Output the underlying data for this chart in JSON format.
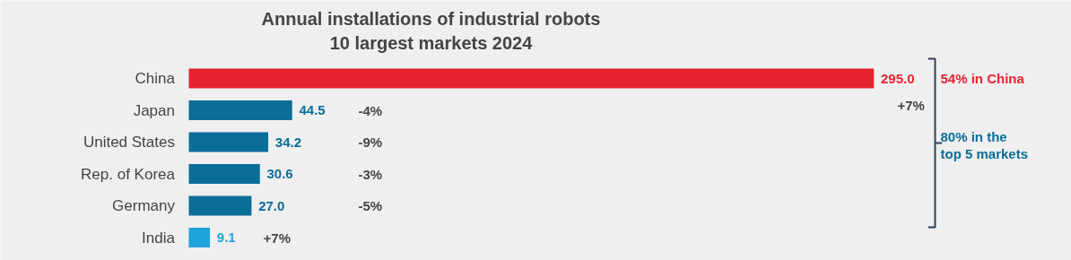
{
  "chart_data": {
    "type": "bar",
    "orientation": "horizontal",
    "title": "Annual installations of industrial robots\n10 largest markets 2024",
    "categories": [
      "China",
      "Japan",
      "United States",
      "Rep. of Korea",
      "Germany",
      "India"
    ],
    "values": [
      295.0,
      44.5,
      34.2,
      30.6,
      27.0,
      9.1
    ],
    "colors": [
      "#e52330",
      "#0b6e98",
      "#0b6e98",
      "#0b6e98",
      "#0b6e98",
      "#1fa3db"
    ],
    "value_labels": [
      "295.0",
      "44.5",
      "34.2",
      "30.6",
      "27.0",
      "9.1"
    ],
    "annotations": [
      "+7%",
      "-4%",
      "-9%",
      "-3%",
      "-5%",
      "+7%",
      "54% in China",
      "80% in the\ntop 5 markets"
    ],
    "grid": false
  }
}
